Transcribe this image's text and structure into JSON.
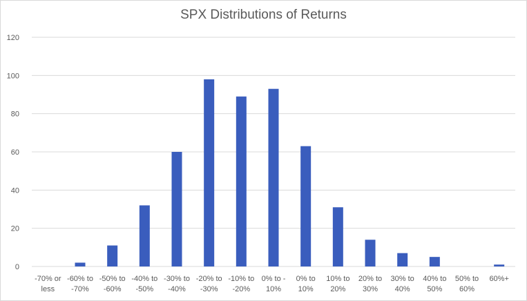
{
  "chart_data": {
    "type": "bar",
    "title": "SPX Distributions of Returns",
    "xlabel": "",
    "ylabel": "",
    "ylim": [
      0,
      120
    ],
    "yticks": [
      0,
      20,
      40,
      60,
      80,
      100,
      120
    ],
    "grid": true,
    "legend": "none",
    "bar_color": "#3a5dbd",
    "categories": [
      [
        "-70% or",
        "less"
      ],
      [
        "-60% to",
        "-70%"
      ],
      [
        "-50% to",
        "-60%"
      ],
      [
        "-40% to",
        "-50%"
      ],
      [
        "-30% to",
        "-40%"
      ],
      [
        "-20% to",
        "-30%"
      ],
      [
        "-10% to",
        "-20%"
      ],
      [
        "0% to -",
        "10%"
      ],
      [
        "0% to",
        "10%"
      ],
      [
        "10% to",
        "20%"
      ],
      [
        "20% to",
        "30%"
      ],
      [
        "30% to",
        "40%"
      ],
      [
        "40% to",
        "50%"
      ],
      [
        "50% to",
        "60%"
      ],
      [
        "60%+"
      ]
    ],
    "values": [
      0,
      2,
      11,
      32,
      60,
      98,
      89,
      93,
      63,
      31,
      14,
      7,
      5,
      0,
      1
    ]
  }
}
